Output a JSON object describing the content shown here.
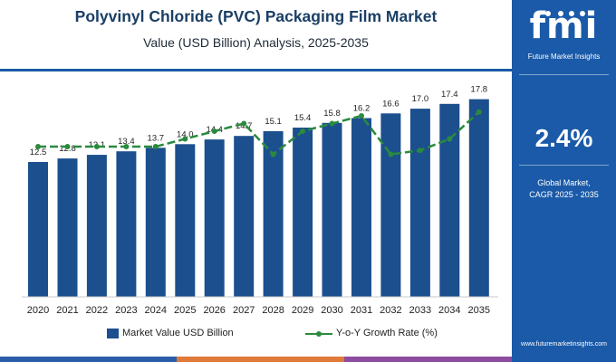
{
  "header": {
    "title": "Polyvinyl Chloride (PVC) Packaging Film Market",
    "subtitle": "Value (USD Billion) Analysis, 2025-2035"
  },
  "sidebar": {
    "logo_text": "fmi",
    "logo_subtitle": "Future Market Insights",
    "cagr_value": "2.4%",
    "cagr_label_line1": "Global Market,",
    "cagr_label_line2": "CAGR 2025 - 2035",
    "website": "www.futuremarketinsights.com",
    "background_color": "#1a5aa8"
  },
  "legend": {
    "bar_label": "Market Value USD Billion",
    "line_label": "Y-o-Y Growth Rate (%)"
  },
  "colors": {
    "bar": "#1c4f8e",
    "line": "#2a8a3e",
    "title": "#1b3f66",
    "top_band": "#1a5aa8",
    "footer_band": [
      "#2a5ea8",
      "#e07a3a",
      "#8c4da0"
    ]
  },
  "chart_data": {
    "type": "bar",
    "categories": [
      "2020",
      "2021",
      "2022",
      "2023",
      "2024",
      "2025",
      "2026",
      "2027",
      "2028",
      "2029",
      "2030",
      "2031",
      "2032",
      "2033",
      "2034",
      "2035"
    ],
    "series": [
      {
        "name": "Market Value USD Billion",
        "type": "bar",
        "values": [
          12.5,
          12.8,
          13.1,
          13.4,
          13.7,
          14.0,
          14.4,
          14.7,
          15.1,
          15.4,
          15.8,
          16.2,
          16.6,
          17.0,
          17.4,
          17.8
        ],
        "labels": [
          "12.5",
          "12.8",
          "13.1",
          "13.4",
          "13.7",
          "14.0",
          "14.4",
          "14.7",
          "15.1",
          "15.4",
          "15.8",
          "16.2",
          "16.6",
          "17.0",
          "17.4",
          "17.8"
        ]
      },
      {
        "name": "Y-o-Y Growth Rate (%)",
        "type": "line",
        "values": [
          2.4,
          2.4,
          2.4,
          2.4,
          2.4,
          2.5,
          2.6,
          2.7,
          2.3,
          2.6,
          2.7,
          2.8,
          2.3,
          2.35,
          2.5,
          2.85
        ]
      }
    ],
    "xlabel": "",
    "ylabel": "",
    "grid": false,
    "legend_position": "bottom"
  }
}
